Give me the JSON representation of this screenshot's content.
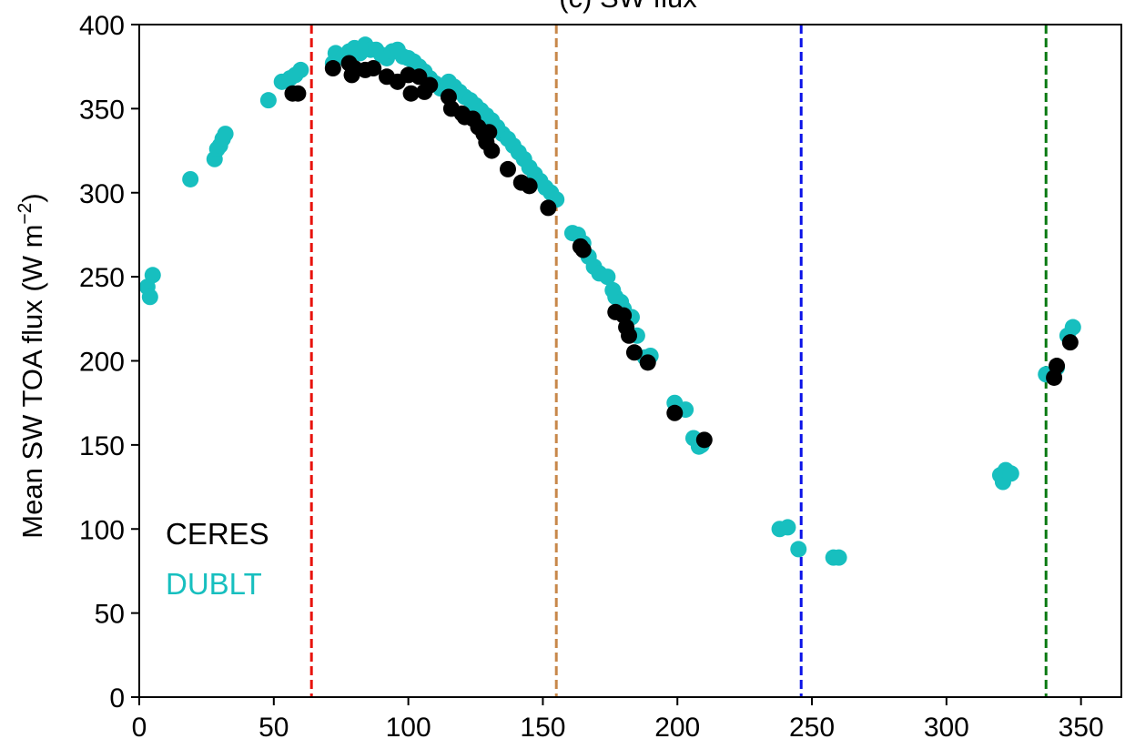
{
  "chart_data": {
    "type": "scatter",
    "title": "(c) SW flux",
    "xlabel": "",
    "ylabel": "Mean SW TOA flux (W m",
    "ylabel_unit_exponent": "−2",
    "ylabel_suffix": ")",
    "xlim": [
      0,
      365
    ],
    "ylim": [
      0,
      400
    ],
    "x_ticks": [
      0,
      50,
      100,
      150,
      200,
      250,
      300,
      350
    ],
    "y_ticks": [
      0,
      50,
      100,
      150,
      200,
      250,
      300,
      350,
      400
    ],
    "grid": false,
    "legend": "bottom-left",
    "vertical_lines": [
      {
        "x": 64,
        "color": "#e8120c",
        "style": "dashed"
      },
      {
        "x": 155,
        "color": "#c8884a",
        "style": "dashed"
      },
      {
        "x": 246,
        "color": "#0a12e8",
        "style": "dashed"
      },
      {
        "x": 337,
        "color": "#0a7a12",
        "style": "dashed"
      }
    ],
    "series": [
      {
        "name": "DUBLT",
        "color": "#17bfbf",
        "points": [
          [
            3,
            244
          ],
          [
            4,
            238
          ],
          [
            5,
            251
          ],
          [
            19,
            308
          ],
          [
            28,
            320
          ],
          [
            29,
            326
          ],
          [
            30,
            328
          ],
          [
            31,
            332
          ],
          [
            32,
            335
          ],
          [
            48,
            355
          ],
          [
            53,
            366
          ],
          [
            56,
            368
          ],
          [
            58,
            370
          ],
          [
            60,
            373
          ],
          [
            72,
            377
          ],
          [
            73,
            383
          ],
          [
            76,
            381
          ],
          [
            78,
            384
          ],
          [
            80,
            386
          ],
          [
            82,
            383
          ],
          [
            84,
            388
          ],
          [
            86,
            385
          ],
          [
            88,
            385
          ],
          [
            90,
            382
          ],
          [
            92,
            380
          ],
          [
            94,
            384
          ],
          [
            96,
            385
          ],
          [
            98,
            381
          ],
          [
            100,
            380
          ],
          [
            102,
            378
          ],
          [
            104,
            375
          ],
          [
            106,
            372
          ],
          [
            108,
            368
          ],
          [
            110,
            365
          ],
          [
            112,
            362
          ],
          [
            115,
            366
          ],
          [
            117,
            363
          ],
          [
            119,
            360
          ],
          [
            121,
            357
          ],
          [
            123,
            355
          ],
          [
            125,
            352
          ],
          [
            127,
            349
          ],
          [
            129,
            346
          ],
          [
            131,
            343
          ],
          [
            133,
            339
          ],
          [
            135,
            335
          ],
          [
            137,
            332
          ],
          [
            139,
            328
          ],
          [
            141,
            324
          ],
          [
            143,
            320
          ],
          [
            145,
            315
          ],
          [
            147,
            311
          ],
          [
            149,
            307
          ],
          [
            151,
            303
          ],
          [
            153,
            300
          ],
          [
            155,
            296
          ],
          [
            161,
            276
          ],
          [
            163,
            275
          ],
          [
            165,
            270
          ],
          [
            167,
            262
          ],
          [
            169,
            256
          ],
          [
            171,
            252
          ],
          [
            174,
            250
          ],
          [
            176,
            242
          ],
          [
            177,
            238
          ],
          [
            179,
            235
          ],
          [
            180,
            231
          ],
          [
            183,
            226
          ],
          [
            185,
            215
          ],
          [
            188,
            202
          ],
          [
            189,
            200
          ],
          [
            190,
            203
          ],
          [
            199,
            175
          ],
          [
            203,
            171
          ],
          [
            206,
            154
          ],
          [
            208,
            149
          ],
          [
            209,
            150
          ],
          [
            238,
            100
          ],
          [
            241,
            101
          ],
          [
            245,
            88
          ],
          [
            258,
            83
          ],
          [
            260,
            83
          ],
          [
            320,
            132
          ],
          [
            321,
            128
          ],
          [
            322,
            135
          ],
          [
            324,
            133
          ],
          [
            337,
            192
          ],
          [
            341,
            196
          ],
          [
            345,
            215
          ],
          [
            347,
            220
          ]
        ]
      },
      {
        "name": "CERES",
        "color": "#000000",
        "points": [
          [
            57,
            359
          ],
          [
            59,
            359
          ],
          [
            72,
            374
          ],
          [
            78,
            377
          ],
          [
            79,
            370
          ],
          [
            80,
            374
          ],
          [
            84,
            373
          ],
          [
            87,
            374
          ],
          [
            92,
            369
          ],
          [
            96,
            366
          ],
          [
            100,
            370
          ],
          [
            101,
            359
          ],
          [
            104,
            369
          ],
          [
            106,
            360
          ],
          [
            108,
            364
          ],
          [
            115,
            357
          ],
          [
            116,
            350
          ],
          [
            120,
            347
          ],
          [
            121,
            345
          ],
          [
            124,
            344
          ],
          [
            126,
            339
          ],
          [
            128,
            335
          ],
          [
            129,
            330
          ],
          [
            130,
            336
          ],
          [
            131,
            325
          ],
          [
            137,
            314
          ],
          [
            142,
            306
          ],
          [
            145,
            304
          ],
          [
            152,
            291
          ],
          [
            164,
            268
          ],
          [
            165,
            266
          ],
          [
            177,
            229
          ],
          [
            180,
            227
          ],
          [
            181,
            220
          ],
          [
            182,
            215
          ],
          [
            184,
            205
          ],
          [
            189,
            199
          ],
          [
            199,
            169
          ],
          [
            210,
            153
          ],
          [
            340,
            190
          ],
          [
            341,
            197
          ],
          [
            346,
            211
          ]
        ]
      }
    ]
  }
}
